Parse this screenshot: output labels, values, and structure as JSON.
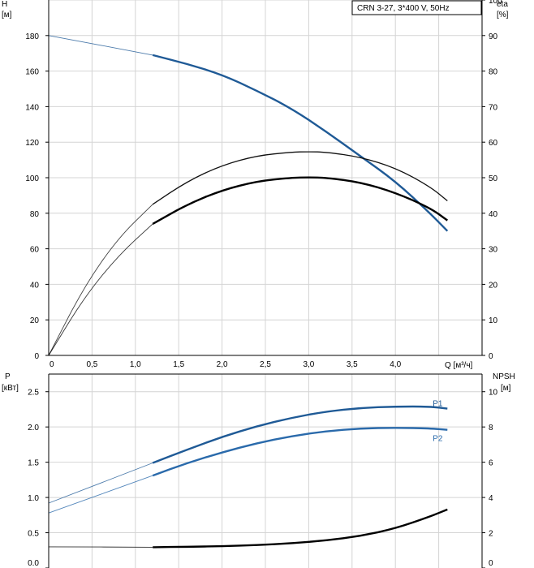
{
  "chart_data": [
    {
      "type": "line",
      "legend_box": "CRN 3-27, 3*400 V, 50Hz",
      "xlabel": "Q [м³/ч]",
      "x_ticks": [
        "0",
        "0,5",
        "1,0",
        "1,5",
        "2,0",
        "2,5",
        "3,0",
        "3,5",
        "4,0"
      ],
      "xlim": [
        0,
        5.0
      ],
      "left_axis": {
        "label": "H",
        "unit": "[м]",
        "ylim": [
          0,
          200
        ],
        "ticks": [
          0,
          20,
          40,
          60,
          80,
          100,
          120,
          140,
          160,
          180
        ]
      },
      "right_axis": {
        "label": "eta",
        "unit": "[%]",
        "ylim": [
          0,
          100
        ],
        "ticks": [
          0,
          10,
          20,
          30,
          40,
          50,
          60,
          70,
          80,
          90,
          100
        ]
      },
      "grid": true,
      "series": [
        {
          "axis": "left",
          "color": "#1f5a96",
          "x": [
            0,
            1.2,
            1.6,
            2.0,
            2.4,
            2.8,
            3.2,
            3.6,
            4.0,
            4.4,
            4.6
          ],
          "y": [
            180,
            169,
            164,
            158,
            149,
            139,
            126,
            112,
            98,
            80,
            70
          ]
        },
        {
          "axis": "right",
          "color": "#111111",
          "x": [
            0,
            0.4,
            0.8,
            1.2,
            1.6,
            2.0,
            2.4,
            2.8,
            3.0,
            3.2,
            3.6,
            4.0,
            4.4,
            4.6
          ],
          "y": [
            0,
            19,
            33,
            42.5,
            49,
            53.5,
            56.2,
            57.2,
            57.3,
            57.2,
            55.8,
            52.8,
            47.5,
            43.5
          ]
        },
        {
          "axis": "right",
          "color": "#000000",
          "x": [
            0,
            0.4,
            0.8,
            1.2,
            1.6,
            2.0,
            2.4,
            2.8,
            3.0,
            3.2,
            3.6,
            4.0,
            4.4,
            4.6
          ],
          "y": [
            0,
            16,
            28,
            37,
            42.5,
            46.5,
            49,
            50,
            50.1,
            50,
            48.7,
            45.8,
            41.5,
            38
          ]
        }
      ]
    },
    {
      "type": "line",
      "x_ticks": [
        "0",
        "0,5",
        "1,0",
        "1,5",
        "2,0",
        "2,5",
        "3,0",
        "3,5",
        "4,0"
      ],
      "xlim": [
        0,
        5.0
      ],
      "left_axis": {
        "label": "P",
        "unit": "[кВт]",
        "ylim": [
          0,
          2.75
        ],
        "ticks": [
          "0.0",
          "0.5",
          "1.0",
          "1.5",
          "2.0",
          "2.5"
        ]
      },
      "right_axis": {
        "label": "NPSH",
        "unit": "[м]",
        "ylim": [
          0,
          11
        ],
        "ticks": [
          0,
          2,
          4,
          6,
          8,
          10
        ]
      },
      "grid": true,
      "series": [
        {
          "name": "P1",
          "axis": "left",
          "color": "#1f5a96",
          "x": [
            0,
            1.2,
            1.6,
            2.0,
            2.4,
            2.8,
            3.2,
            3.6,
            4.0,
            4.4,
            4.6
          ],
          "y": [
            0.92,
            1.49,
            1.68,
            1.86,
            2.01,
            2.13,
            2.22,
            2.27,
            2.29,
            2.29,
            2.26
          ]
        },
        {
          "name": "P2",
          "axis": "left",
          "color": "#2a6aab",
          "x": [
            0,
            1.2,
            1.6,
            2.0,
            2.4,
            2.8,
            3.2,
            3.6,
            4.0,
            4.4,
            4.6
          ],
          "y": [
            0.78,
            1.31,
            1.49,
            1.64,
            1.77,
            1.87,
            1.94,
            1.98,
            1.99,
            1.98,
            1.96
          ]
        },
        {
          "axis": "right",
          "color": "#000000",
          "x": [
            0,
            1.2,
            1.6,
            2.0,
            2.4,
            2.8,
            3.2,
            3.6,
            4.0,
            4.4,
            4.6
          ],
          "y": [
            1.2,
            1.18,
            1.2,
            1.24,
            1.3,
            1.4,
            1.56,
            1.82,
            2.24,
            2.92,
            3.32
          ]
        }
      ]
    }
  ]
}
